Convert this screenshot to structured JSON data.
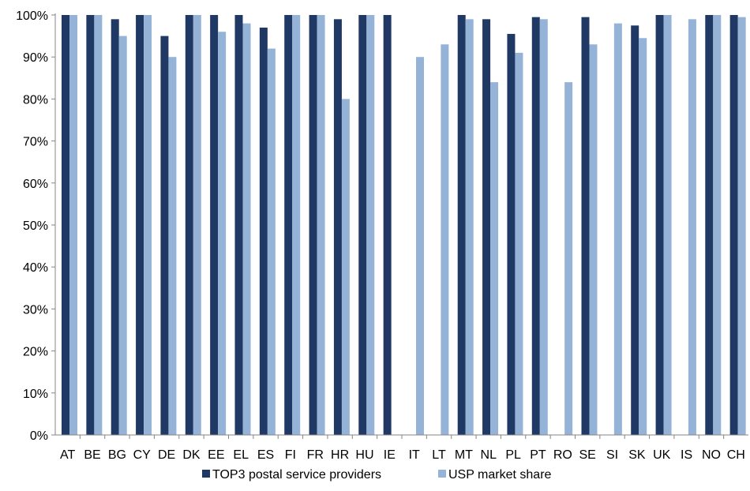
{
  "chart_data": {
    "type": "bar",
    "title": "",
    "xlabel": "",
    "ylabel": "",
    "ylim": [
      0,
      100
    ],
    "y_ticks": [
      0,
      10,
      20,
      30,
      40,
      50,
      60,
      70,
      80,
      90,
      100
    ],
    "y_tick_labels": [
      "0%",
      "10%",
      "20%",
      "30%",
      "40%",
      "50%",
      "60%",
      "70%",
      "80%",
      "90%",
      "100%"
    ],
    "grid": false,
    "legend_position": "bottom",
    "categories": [
      "AT",
      "BE",
      "BG",
      "CY",
      "DE",
      "DK",
      "EE",
      "EL",
      "ES",
      "FI",
      "FR",
      "HR",
      "HU",
      "IE",
      "IT",
      "LT",
      "MT",
      "NL",
      "PL",
      "PT",
      "RO",
      "SE",
      "SI",
      "SK",
      "UK",
      "IS",
      "NO",
      "CH"
    ],
    "series": [
      {
        "name": "TOP3 postal service providers",
        "color": "#1f3864",
        "values": [
          100,
          100,
          99,
          100,
          95,
          100,
          100,
          100,
          97,
          100,
          100,
          99,
          100,
          100,
          null,
          null,
          100,
          99,
          95.5,
          99.5,
          null,
          99.5,
          null,
          97.5,
          100,
          null,
          100,
          100
        ]
      },
      {
        "name": "USP market share",
        "color": "#95b3d7",
        "values": [
          100,
          100,
          95,
          100,
          90,
          100,
          96,
          98,
          92,
          100,
          100,
          80,
          100,
          null,
          90,
          93,
          99,
          84,
          91,
          99,
          84,
          93,
          98,
          94.5,
          100,
          99,
          100,
          99.5
        ]
      }
    ]
  }
}
